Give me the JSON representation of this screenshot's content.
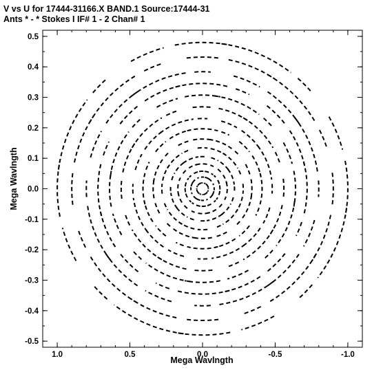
{
  "chart_data": {
    "type": "scatter",
    "title_line1": "V vs U for 17444-31166.X BAND.1   Source:17444-31",
    "title_line2": "Ants * - *     Stokes I  IF# 1 - 2  Chan# 1",
    "xlabel": "Mega Wavlngth",
    "ylabel": "Mega Wavlngth",
    "xlim": [
      1.1,
      -1.1
    ],
    "ylim": [
      -0.52,
      0.52
    ],
    "x_ticks": [
      1.0,
      0.5,
      0.0,
      -0.5,
      -1.0
    ],
    "x_tick_labels": [
      "1.0",
      "0.5",
      "0.0",
      "-0.5",
      "-1.0"
    ],
    "y_ticks": [
      0.5,
      0.4,
      0.3,
      0.2,
      0.1,
      0.0,
      -0.1,
      -0.2,
      -0.3,
      -0.4,
      -0.5
    ],
    "y_tick_labels": [
      "0.5",
      "0.4",
      "0.3",
      "0.2",
      "0.1",
      "0.0",
      "-0.1",
      "-0.2",
      "-0.3",
      "-0.4",
      "-0.5"
    ],
    "point_color": "#000000",
    "tracks": {
      "description_free": true,
      "spokes_deg": [
        0,
        22.5,
        45,
        67.5,
        90,
        112.5,
        135,
        157.5
      ],
      "radii": [
        0.04,
        0.08,
        0.12,
        0.17,
        0.22,
        0.28,
        0.34,
        0.41,
        0.48,
        0.56,
        0.64,
        0.72,
        0.8,
        0.9,
        1.0
      ],
      "arc_half_deg": [
        4,
        7,
        11,
        15
      ]
    }
  }
}
